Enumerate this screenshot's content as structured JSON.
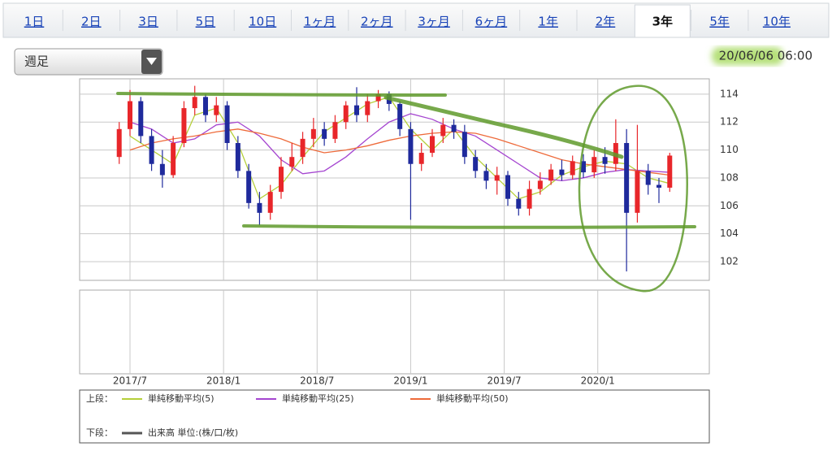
{
  "tabs": [
    "1日",
    "2日",
    "3日",
    "5日",
    "10日",
    "1ヶ月",
    "2ヶ月",
    "3ヶ月",
    "6ヶ月",
    "1年",
    "2年",
    "3年",
    "5年",
    "10年"
  ],
  "active_tab": "3年",
  "dropdown": {
    "value": "週足"
  },
  "timestamp": "20/06/06 06:00",
  "chart_data": {
    "type": "candlestick",
    "x": [
      11,
      14,
      17,
      20,
      23,
      26,
      29,
      32,
      35,
      38,
      41,
      44,
      47,
      50,
      53,
      56,
      59,
      62,
      65,
      68,
      71,
      74,
      77,
      80,
      83,
      86,
      89,
      92,
      95,
      98,
      101,
      104,
      107,
      110,
      113,
      116,
      119,
      122,
      125,
      128,
      131,
      134,
      137,
      140,
      143,
      146,
      149,
      152,
      155,
      158,
      161,
      164
    ],
    "open": [
      109.5,
      111.5,
      113.5,
      111,
      109,
      108.2,
      110.5,
      113,
      113.8,
      112.5,
      113.2,
      110.5,
      108.5,
      106.2,
      105.5,
      107,
      108.8,
      109.5,
      110.8,
      111.5,
      110.8,
      112,
      113.2,
      112.5,
      113.5,
      114,
      113.3,
      111.5,
      109,
      109.8,
      111,
      111.8,
      111.3,
      109.5,
      108.5,
      107.8,
      108.2,
      106.5,
      105.8,
      107.2,
      107.8,
      108.6,
      108.2,
      109.2,
      108.4,
      109.5,
      109,
      110.5,
      105.5,
      108.5,
      107.5,
      107.3
    ],
    "close": [
      111.5,
      113.5,
      111,
      109,
      108.2,
      110.5,
      113,
      113.8,
      112.5,
      113.2,
      110.5,
      108.5,
      106.2,
      105.5,
      107,
      108.8,
      109.5,
      110.8,
      111.5,
      110.8,
      112,
      113.2,
      112.5,
      113.5,
      114,
      113.3,
      111.5,
      109,
      109.8,
      111,
      111.8,
      111.3,
      109.5,
      108.5,
      107.8,
      108.2,
      106.5,
      105.8,
      107.2,
      107.8,
      108.6,
      108.2,
      109.2,
      108.4,
      109.5,
      109,
      110.5,
      105.5,
      108.5,
      107.5,
      107.3,
      109.6
    ],
    "high": [
      112,
      114.3,
      113.8,
      111.5,
      110,
      111,
      113.5,
      114.6,
      114,
      113.8,
      113.5,
      111,
      109,
      107,
      107.5,
      109.5,
      110.5,
      111.3,
      112.3,
      112,
      112.5,
      113.5,
      114.5,
      114,
      114.3,
      114.2,
      113.5,
      112,
      110.5,
      111.5,
      112.3,
      112.2,
      111.8,
      110,
      109,
      108.8,
      108.5,
      107,
      107.8,
      108.4,
      109,
      109.3,
      109.6,
      109.7,
      110,
      110.2,
      112.2,
      111.5,
      111.8,
      109,
      108,
      109.8
    ],
    "low": [
      109,
      111,
      110.5,
      108.5,
      107.3,
      108,
      110.2,
      112.5,
      112,
      112,
      110,
      108,
      105.8,
      104.6,
      105,
      106.5,
      108.5,
      109,
      110.2,
      110.3,
      110.5,
      111.5,
      112,
      112,
      113,
      112.8,
      111,
      105,
      108.5,
      109.5,
      110.5,
      110.8,
      109,
      108,
      107.2,
      106.8,
      106,
      105.3,
      105.3,
      106.8,
      107.5,
      107.8,
      107.9,
      108,
      108,
      108.3,
      108.5,
      101.3,
      104.8,
      106.8,
      106.2,
      107
    ],
    "up_color": "#e8262a",
    "down_color": "#1f2a9c",
    "series": [
      {
        "name": "単純移動平均(5)",
        "color": "#b5cf3a",
        "x": [
          14,
          20,
          26,
          32,
          38,
          44,
          50,
          56,
          62,
          68,
          74,
          80,
          86,
          92,
          98,
          104,
          110,
          116,
          122,
          128,
          134,
          140,
          146,
          152,
          158,
          164
        ],
        "values": [
          111,
          110,
          109,
          112.5,
          113,
          110.5,
          106.5,
          107.5,
          109.5,
          111.3,
          112.3,
          113.3,
          113.8,
          111.5,
          110,
          111.5,
          109.5,
          108,
          106.5,
          107,
          108.2,
          108.8,
          109.2,
          109,
          108,
          107.6
        ]
      },
      {
        "name": "単純移動平均(25)",
        "color": "#a545d0",
        "x": [
          14,
          20,
          26,
          32,
          38,
          44,
          50,
          56,
          62,
          68,
          74,
          80,
          86,
          92,
          98,
          104,
          110,
          116,
          122,
          128,
          134,
          140,
          146,
          152,
          158,
          164
        ],
        "values": [
          112,
          111.5,
          110.5,
          110.8,
          111.8,
          112,
          111,
          109.3,
          108.3,
          108.5,
          109.5,
          110.8,
          112,
          112.6,
          112.2,
          111.5,
          111,
          110,
          109,
          108,
          107.8,
          108,
          108.4,
          108.6,
          108.5,
          108.4
        ]
      },
      {
        "name": "単純移動平均(50)",
        "color": "#ee6a3a",
        "x": [
          14,
          20,
          26,
          32,
          38,
          44,
          50,
          56,
          62,
          68,
          74,
          80,
          86,
          92,
          98,
          104,
          110,
          116,
          122,
          128,
          134,
          140,
          146,
          152,
          158,
          164
        ],
        "values": [
          110,
          110.5,
          110.8,
          111,
          111.3,
          111.5,
          111.2,
          110.8,
          110.2,
          109.8,
          110,
          110.3,
          110.7,
          111,
          111.2,
          111.3,
          111.2,
          110.8,
          110.3,
          109.8,
          109.3,
          109,
          108.8,
          108.6,
          108.4,
          108.2
        ]
      }
    ],
    "volume_series": {
      "name": "出来高 単位:(株/口/枚)",
      "color": "#555555"
    },
    "legend_upper": "上段：",
    "legend_lower": "下段：",
    "xlim": [
      0,
      175
    ],
    "xticks": [
      {
        "value": 14,
        "label": "2017/7"
      },
      {
        "value": 40,
        "label": "2018/1"
      },
      {
        "value": 66,
        "label": "2018/7"
      },
      {
        "value": 92,
        "label": "2019/1"
      },
      {
        "value": 118,
        "label": "2019/7"
      },
      {
        "value": 144,
        "label": "2020/1"
      }
    ],
    "ylim": [
      100.66,
      115.1
    ],
    "yticks": [
      102,
      104,
      106,
      108,
      110,
      112,
      114
    ],
    "grid": true
  }
}
